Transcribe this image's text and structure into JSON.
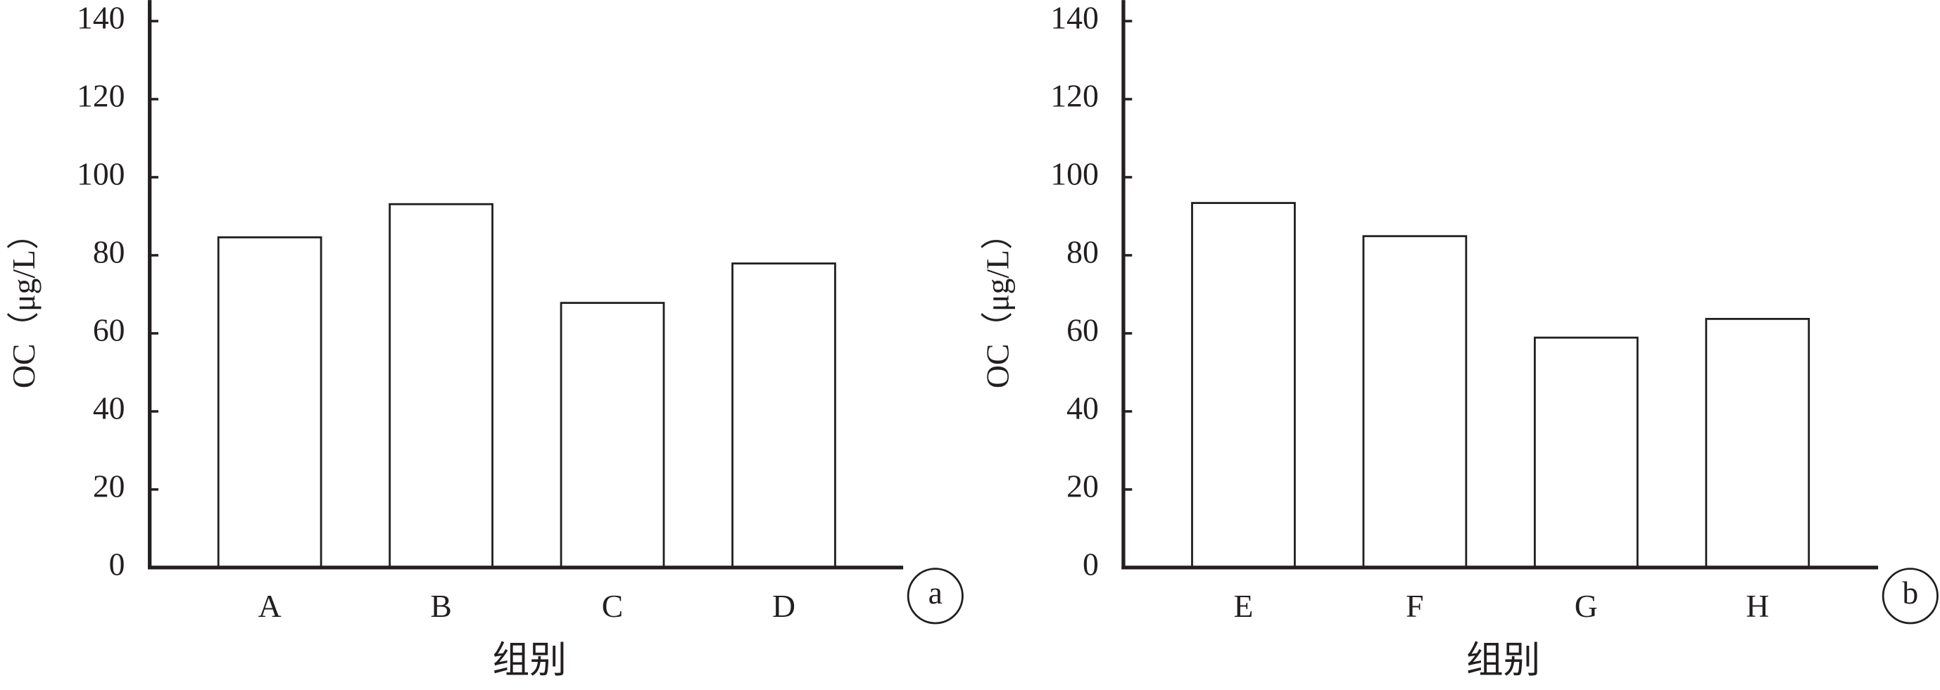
{
  "chart_data": [
    {
      "type": "bar",
      "panel_label": "a",
      "y_label": "OC（μg/L）",
      "x_label": "组别",
      "categories": [
        "A",
        "B",
        "C",
        "D"
      ],
      "values": [
        84.6,
        93.1,
        67.8,
        77.9
      ],
      "color": "#ffffff",
      "ylim": [
        0,
        140
      ],
      "yticks": [
        0,
        20,
        40,
        60,
        80,
        100,
        120,
        140
      ]
    },
    {
      "type": "bar",
      "panel_label": "b",
      "y_label": "OC（μg/L）",
      "x_label": "组别",
      "categories": [
        "E",
        "F",
        "G",
        "H"
      ],
      "values": [
        93.4,
        84.9,
        58.9,
        63.7
      ],
      "color": "#ffffff",
      "ylim": [
        0,
        140
      ],
      "yticks": [
        0,
        20,
        40,
        60,
        80,
        100,
        120,
        140
      ]
    }
  ]
}
